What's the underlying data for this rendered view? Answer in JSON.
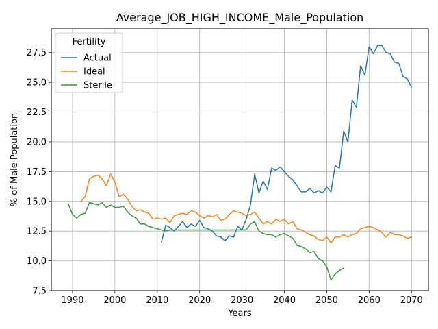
{
  "chart_data": {
    "type": "line",
    "title": "Average_JOB_HIGH_INCOME_Male_Population",
    "xlabel": "Years",
    "ylabel": "% of Male Population",
    "xlim": [
      1985,
      2074
    ],
    "ylim": [
      7.5,
      29.5
    ],
    "xticks": [
      1990,
      2000,
      2010,
      2020,
      2030,
      2040,
      2050,
      2060,
      2070
    ],
    "yticks": [
      7.5,
      10.0,
      12.5,
      15.0,
      17.5,
      20.0,
      22.5,
      25.0,
      27.5
    ],
    "grid": true,
    "legend": {
      "title": "Fertility",
      "placement": "top-left"
    },
    "series": [
      {
        "name": "Actual",
        "color": "#1f77b4",
        "x": [
          2011,
          2012,
          2013,
          2014,
          2015,
          2016,
          2017,
          2018,
          2019,
          2020,
          2021,
          2022,
          2023,
          2024,
          2025,
          2026,
          2027,
          2028,
          2029,
          2030,
          2031,
          2032,
          2033,
          2034,
          2035,
          2036,
          2037,
          2038,
          2039,
          2040,
          2041,
          2042,
          2043,
          2044,
          2045,
          2046,
          2047,
          2048,
          2049,
          2050,
          2051,
          2052,
          2053,
          2054,
          2055,
          2056,
          2057,
          2058,
          2059,
          2060,
          2061,
          2062,
          2063,
          2064,
          2065,
          2066,
          2067,
          2068,
          2069,
          2070
        ],
        "y": [
          11.6,
          13.0,
          12.8,
          12.5,
          12.9,
          13.3,
          12.8,
          13.1,
          12.9,
          13.4,
          12.8,
          12.7,
          12.5,
          12.1,
          12.0,
          11.7,
          12.1,
          12.0,
          12.9,
          12.6,
          13.5,
          14.7,
          17.3,
          15.7,
          16.7,
          16.0,
          17.8,
          17.6,
          17.9,
          17.5,
          17.1,
          16.8,
          16.3,
          15.8,
          15.8,
          16.1,
          15.7,
          15.9,
          15.7,
          16.2,
          15.8,
          18.0,
          17.8,
          20.9,
          20.0,
          23.5,
          22.9,
          26.4,
          25.6,
          28.0,
          27.4,
          28.1,
          28.1,
          27.5,
          27.4,
          26.7,
          26.6,
          25.5,
          25.3,
          24.6
        ]
      },
      {
        "name": "Ideal",
        "color": "#ff7f0e",
        "x": [
          1992,
          1993,
          1994,
          1995,
          1996,
          1997,
          1998,
          1999,
          2000,
          2001,
          2002,
          2003,
          2004,
          2005,
          2006,
          2007,
          2008,
          2009,
          2010,
          2011,
          2012,
          2013,
          2014,
          2015,
          2016,
          2017,
          2018,
          2019,
          2020,
          2021,
          2022,
          2023,
          2024,
          2025,
          2026,
          2027,
          2028,
          2029,
          2030,
          2031,
          2032,
          2033,
          2034,
          2035,
          2036,
          2037,
          2038,
          2039,
          2040,
          2041,
          2042,
          2043,
          2044,
          2045,
          2046,
          2047,
          2048,
          2049,
          2050,
          2051,
          2052,
          2053,
          2054,
          2055,
          2056,
          2057,
          2058,
          2059,
          2060,
          2061,
          2062,
          2063,
          2064,
          2065,
          2066,
          2067,
          2068,
          2069,
          2070
        ],
        "y": [
          15.0,
          15.4,
          16.9,
          17.1,
          17.2,
          16.9,
          16.3,
          17.3,
          16.6,
          15.4,
          15.6,
          15.2,
          14.6,
          14.2,
          14.3,
          14.1,
          14.0,
          13.5,
          13.6,
          13.5,
          13.6,
          13.2,
          13.8,
          13.9,
          14.0,
          13.9,
          14.2,
          14.1,
          13.8,
          13.6,
          13.8,
          13.7,
          13.9,
          13.4,
          13.5,
          13.9,
          14.2,
          14.1,
          14.0,
          13.8,
          13.9,
          14.1,
          13.6,
          13.1,
          13.3,
          13.1,
          13.5,
          13.3,
          13.5,
          13.1,
          13.3,
          12.7,
          12.6,
          12.4,
          12.2,
          12.1,
          11.8,
          11.7,
          12.0,
          11.5,
          12.0,
          12.0,
          12.2,
          12.0,
          12.2,
          12.3,
          12.7,
          12.8,
          12.9,
          12.8,
          12.6,
          12.4,
          12.0,
          12.4,
          12.2,
          12.2,
          12.1,
          11.9,
          12.0
        ]
      },
      {
        "name": "Sterile",
        "color": "#2ca02c",
        "x": [
          1989,
          1990,
          1991,
          1992,
          1993,
          1994,
          1995,
          1996,
          1997,
          1998,
          1999,
          2000,
          2001,
          2002,
          2003,
          2004,
          2005,
          2006,
          2007,
          2008,
          2009,
          2010,
          2011,
          2012,
          2013,
          2014,
          2015,
          2016,
          2017,
          2018,
          2019,
          2020,
          2021,
          2022,
          2023,
          2024,
          2025,
          2026,
          2027,
          2028,
          2029,
          2030,
          2031,
          2032,
          2033,
          2034,
          2035,
          2036,
          2037,
          2038,
          2039,
          2040,
          2041,
          2042,
          2043,
          2044,
          2045,
          2046,
          2047,
          2048,
          2049,
          2050,
          2051,
          2052,
          2053,
          2054
        ],
        "y": [
          14.8,
          13.9,
          13.6,
          13.9,
          14.0,
          14.9,
          14.8,
          14.7,
          14.9,
          14.5,
          14.7,
          14.5,
          14.5,
          14.6,
          14.1,
          13.8,
          13.6,
          13.1,
          13.1,
          12.9,
          12.8,
          12.7,
          12.6,
          12.5,
          12.6,
          12.6,
          12.6,
          12.6,
          12.6,
          12.6,
          12.6,
          12.6,
          12.6,
          12.6,
          12.6,
          12.6,
          12.6,
          12.6,
          12.6,
          12.6,
          12.6,
          12.6,
          12.6,
          13.1,
          13.3,
          12.5,
          12.3,
          12.2,
          12.2,
          12.0,
          12.2,
          12.3,
          12.1,
          11.9,
          11.3,
          11.2,
          11.0,
          10.7,
          10.8,
          10.2,
          10.0,
          9.5,
          8.4,
          8.9,
          9.2,
          9.4
        ]
      }
    ]
  }
}
